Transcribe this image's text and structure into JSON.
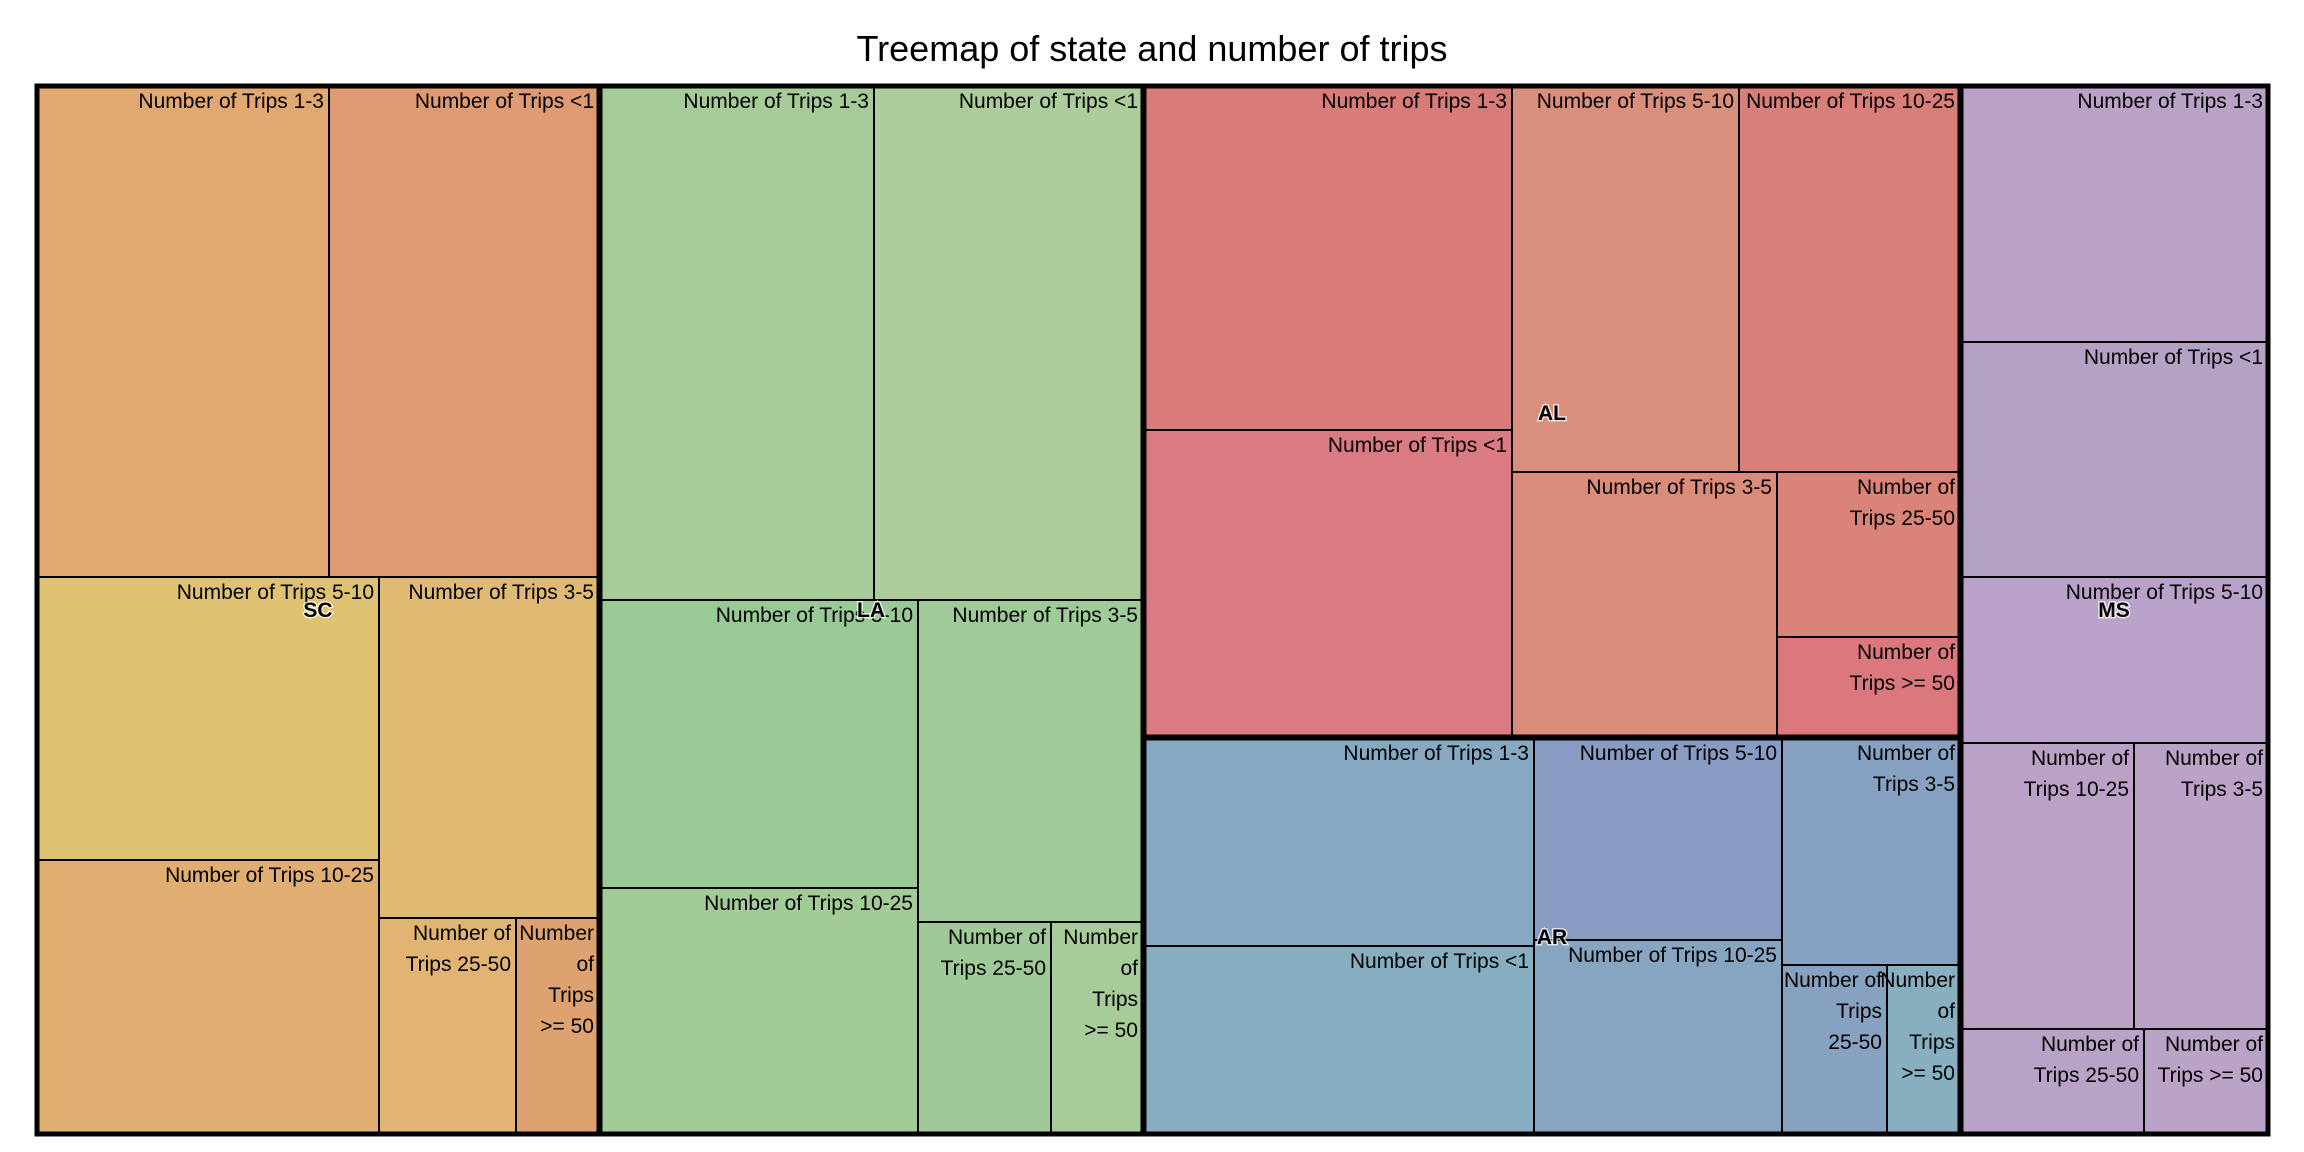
{
  "chart_data": {
    "type": "treemap",
    "title": "Treemap of state and number of trips",
    "states": [
      {
        "name": "SC",
        "color": "#E0A56C",
        "children": [
          {
            "label": "Number of Trips 1-3",
            "lines": [
              "Number of Trips 1-3"
            ],
            "value": 198,
            "color": "#E1A872"
          },
          {
            "label": "Number of Trips <1",
            "lines": [
              "Number of Trips <1"
            ],
            "value": 180,
            "color": "#DE9A73"
          },
          {
            "label": "Number of Trips 5-10",
            "lines": [
              "Number of Trips 5-10"
            ],
            "value": 134,
            "color": "#DEC272"
          },
          {
            "label": "Number of Trips 10-25",
            "lines": [
              "Number of Trips 10-25"
            ],
            "value": 129,
            "color": "#E0AE71"
          },
          {
            "label": "Number of Trips 3-5",
            "lines": [
              "Number of Trips 3-5"
            ],
            "value": 136,
            "color": "#E0BA73"
          },
          {
            "label": "Number of Trips 25-50",
            "lines": [
              "Number of",
              "Trips 25-50"
            ],
            "value": 52,
            "color": "#E1B473"
          },
          {
            "label": "Number of Trips >= 50",
            "lines": [
              "Number",
              "of",
              "Trips",
              ">= 50"
            ],
            "value": 30,
            "color": "#DEA270"
          }
        ]
      },
      {
        "name": "LA",
        "color": "#A3CC98",
        "children": [
          {
            "label": "Number of Trips 1-3",
            "lines": [
              "Number of Trips 1-3"
            ],
            "value": 204,
            "color": "#A6CB99"
          },
          {
            "label": "Number of Trips <1",
            "lines": [
              "Number of Trips <1"
            ],
            "value": 199,
            "color": "#ADCC9B"
          },
          {
            "label": "Number of Trips 5-10",
            "lines": [
              "Number of Trips 5-10"
            ],
            "value": 132,
            "color": "#99CA96"
          },
          {
            "label": "Number of Trips 10-25",
            "lines": [
              "Number of Trips 10-25"
            ],
            "value": 112,
            "color": "#A3CB98"
          },
          {
            "label": "Number of Trips 3-5",
            "lines": [
              "Number of Trips 3-5"
            ],
            "value": 101,
            "color": "#9ECB98"
          },
          {
            "label": "Number of Trips 25-50",
            "lines": [
              "Number of",
              "Trips 25-50"
            ],
            "value": 44,
            "color": "#9FCA97"
          },
          {
            "label": "Number of Trips >= 50",
            "lines": [
              "Number",
              "of",
              "Trips",
              ">= 50"
            ],
            "value": 28,
            "color": "#A8CC99"
          }
        ]
      },
      {
        "name": "AL",
        "color": "#DA7B79",
        "children": [
          {
            "label": "Number of Trips 1-3",
            "lines": [
              "Number of Trips 1-3"
            ],
            "value": 190,
            "color": "#D97B79"
          },
          {
            "label": "Number of Trips <1",
            "lines": [
              "Number of Trips <1"
            ],
            "value": 170,
            "color": "#DA7A82"
          },
          {
            "label": "Number of Trips 5-10",
            "lines": [
              "Number of Trips 5-10"
            ],
            "value": 118,
            "color": "#DA8E7C"
          },
          {
            "label": "Number of Trips 10-25",
            "lines": [
              "Number of Trips 10-25"
            ],
            "value": 112,
            "color": "#DA7E79"
          },
          {
            "label": "Number of Trips 3-5",
            "lines": [
              "Number of Trips 3-5"
            ],
            "value": 105,
            "color": "#DA8B7A"
          },
          {
            "label": "Number of Trips 25-50",
            "lines": [
              "Number of",
              "Trips 25-50"
            ],
            "value": 44,
            "color": "#DA8479"
          },
          {
            "label": "Number of Trips >= 50",
            "lines": [
              "Number of",
              "Trips >= 50"
            ],
            "value": 25,
            "color": "#DA787D"
          }
        ]
      },
      {
        "name": "AR",
        "color": "#86A8C0",
        "children": [
          {
            "label": "Number of Trips 1-3",
            "lines": [
              "Number of Trips 1-3"
            ],
            "value": 135,
            "color": "#86A8C0"
          },
          {
            "label": "Number of Trips <1",
            "lines": [
              "Number of Trips <1"
            ],
            "value": 120,
            "color": "#87AEC0"
          },
          {
            "label": "Number of Trips 5-10",
            "lines": [
              "Number of Trips 5-10"
            ],
            "value": 85,
            "color": "#889CC3"
          },
          {
            "label": "Number of Trips 10-25",
            "lines": [
              "Number of Trips 10-25"
            ],
            "value": 76,
            "color": "#87A5C1"
          },
          {
            "label": "Number of Trips 3-5",
            "lines": [
              "Number of",
              "Trips 3-5"
            ],
            "value": 61,
            "color": "#87A1C3"
          },
          {
            "label": "Number of Trips 25-50",
            "lines": [
              "Number of",
              "Trips",
              "25-50"
            ],
            "value": 32,
            "color": "#87A2C0"
          },
          {
            "label": "Number of Trips >= 50",
            "lines": [
              "Number",
              "of",
              "Trips",
              ">= 50"
            ],
            "value": 22,
            "color": "#87AFC0"
          }
        ]
      },
      {
        "name": "MS",
        "color": "#B9A2C6",
        "children": [
          {
            "label": "Number of Trips 1-3",
            "lines": [
              "Number of Trips 1-3"
            ],
            "value": 130,
            "color": "#B9A2C6"
          },
          {
            "label": "Number of Trips <1",
            "lines": [
              "Number of Trips <1"
            ],
            "value": 120,
            "color": "#B4A1C6"
          },
          {
            "label": "Number of Trips 5-10",
            "lines": [
              "Number of Trips 5-10"
            ],
            "value": 85,
            "color": "#BAA1C9"
          },
          {
            "label": "Number of Trips 10-25",
            "lines": [
              "Number of",
              "Trips 10-25"
            ],
            "value": 72,
            "color": "#BBA1C5"
          },
          {
            "label": "Number of Trips 3-5",
            "lines": [
              "Number of",
              "Trips 3-5"
            ],
            "value": 56,
            "color": "#BDA2C7"
          },
          {
            "label": "Number of Trips 25-50",
            "lines": [
              "Number of",
              "Trips 25-50"
            ],
            "value": 35,
            "color": "#B8A2C7"
          },
          {
            "label": "Number of Trips >= 50",
            "lines": [
              "Number of",
              "Trips >= 50"
            ],
            "value": 33,
            "color": "#BBA2C7"
          }
        ]
      }
    ]
  }
}
